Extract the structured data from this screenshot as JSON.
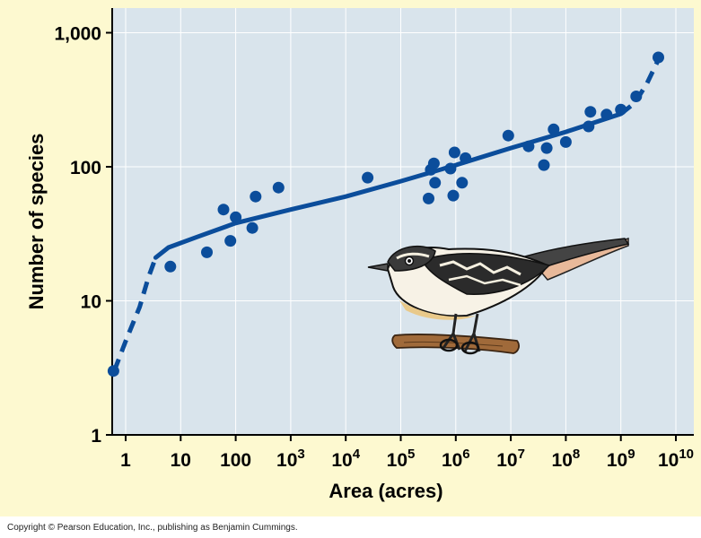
{
  "chart_data": {
    "type": "scatter",
    "xlabel": "Area (acres)",
    "ylabel": "Number of species",
    "x_scale": "log",
    "y_scale": "log",
    "xlim": [
      0.6,
      20000000000
    ],
    "ylim": [
      1,
      1300
    ],
    "grid": true,
    "x_tick_labels": [
      {
        "value": 1,
        "base": "1",
        "exp": ""
      },
      {
        "value": 10,
        "base": "10",
        "exp": ""
      },
      {
        "value": 100,
        "base": "100",
        "exp": ""
      },
      {
        "value": 1000,
        "base": "10",
        "exp": "3"
      },
      {
        "value": 10000,
        "base": "10",
        "exp": "4"
      },
      {
        "value": 100000,
        "base": "10",
        "exp": "5"
      },
      {
        "value": 1000000,
        "base": "10",
        "exp": "6"
      },
      {
        "value": 10000000,
        "base": "10",
        "exp": "7"
      },
      {
        "value": 100000000,
        "base": "10",
        "exp": "8"
      },
      {
        "value": 1000000000,
        "base": "10",
        "exp": "9"
      },
      {
        "value": 10000000000,
        "base": "10",
        "exp": "10"
      }
    ],
    "y_tick_labels": [
      {
        "value": 1,
        "label": "1"
      },
      {
        "value": 10,
        "label": "10"
      },
      {
        "value": 100,
        "label": "100"
      },
      {
        "value": 1000,
        "label": "1,000"
      }
    ],
    "points": [
      {
        "x": 0.6,
        "y": 3
      },
      {
        "x": 6.5,
        "y": 18
      },
      {
        "x": 30,
        "y": 23
      },
      {
        "x": 60,
        "y": 48
      },
      {
        "x": 80,
        "y": 28
      },
      {
        "x": 100,
        "y": 42
      },
      {
        "x": 200,
        "y": 35
      },
      {
        "x": 230,
        "y": 60
      },
      {
        "x": 600,
        "y": 70
      },
      {
        "x": 25000,
        "y": 83
      },
      {
        "x": 320000,
        "y": 58
      },
      {
        "x": 350000,
        "y": 95
      },
      {
        "x": 400000,
        "y": 106
      },
      {
        "x": 420000,
        "y": 76
      },
      {
        "x": 800000,
        "y": 97
      },
      {
        "x": 900000,
        "y": 61
      },
      {
        "x": 950000,
        "y": 128
      },
      {
        "x": 1300000,
        "y": 76
      },
      {
        "x": 1500000,
        "y": 116
      },
      {
        "x": 9000000,
        "y": 171
      },
      {
        "x": 21000000,
        "y": 142
      },
      {
        "x": 40000000,
        "y": 103
      },
      {
        "x": 45000000,
        "y": 138
      },
      {
        "x": 60000000,
        "y": 190
      },
      {
        "x": 100000000,
        "y": 153
      },
      {
        "x": 260000000,
        "y": 200
      },
      {
        "x": 280000000,
        "y": 257
      },
      {
        "x": 550000000,
        "y": 245
      },
      {
        "x": 1000000000,
        "y": 267
      },
      {
        "x": 1900000000,
        "y": 335
      },
      {
        "x": 4800000000,
        "y": 655
      }
    ],
    "fit_curve": {
      "solid": [
        [
          3.5,
          21
        ],
        [
          6,
          25
        ],
        [
          20,
          30
        ],
        [
          100,
          38
        ],
        [
          1000,
          48
        ],
        [
          10000,
          60
        ],
        [
          100000,
          78
        ],
        [
          1000000,
          103
        ],
        [
          10000000,
          138
        ],
        [
          100000000,
          182
        ],
        [
          1000000000,
          248
        ]
      ],
      "dashed_start": [
        [
          0.62,
          3
        ],
        [
          1.0,
          5
        ],
        [
          1.8,
          9
        ],
        [
          2.6,
          15
        ],
        [
          3.5,
          21
        ]
      ],
      "dashed_end": [
        [
          1000000000,
          248
        ],
        [
          1800000000,
          300
        ],
        [
          3000000000,
          420
        ],
        [
          5000000000,
          650
        ]
      ]
    },
    "colors": {
      "plot_background": "#d9e4ec",
      "figure_background": "#fdf9d0",
      "series": "#0b4d9b",
      "grid": "#ffffff"
    }
  },
  "illustration": "bird-on-branch",
  "copyright": "Copyright © Pearson Education, Inc., publishing as Benjamin Cummings."
}
